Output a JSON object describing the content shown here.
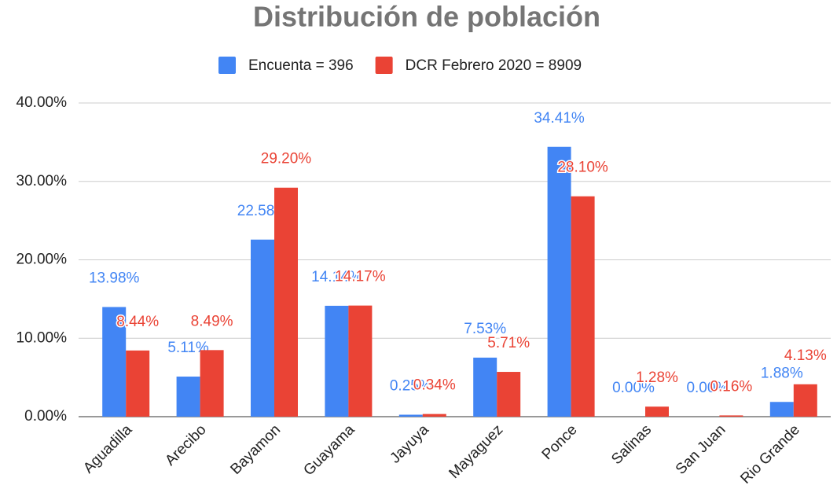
{
  "chart_data": {
    "type": "bar",
    "title": "Distribución de población",
    "categories": [
      "Aguadilla",
      "Arecibo",
      "Bayamon",
      "Guayama",
      "Jayuya",
      "Mayaguez",
      "Ponce",
      "Salinas",
      "San Juan",
      "Rio Grande"
    ],
    "series": [
      {
        "name": "Encuenta = 396",
        "color": "#4285f4",
        "values": [
          13.98,
          5.11,
          22.58,
          14.14,
          0.25,
          7.53,
          34.41,
          0,
          0,
          1.88
        ],
        "value_labels": [
          "13.98%",
          "5.11%",
          "22.58%",
          "14.14%",
          "0.25%",
          "7.53%",
          "34.41%",
          "0.00%",
          "0.00%",
          "1.88%"
        ]
      },
      {
        "name": "DCR Febrero 2020 = 8909",
        "color": "#ea4335",
        "values": [
          8.44,
          8.49,
          29.2,
          14.17,
          0.34,
          5.71,
          28.1,
          1.28,
          0.16,
          4.13
        ],
        "value_labels": [
          "8.44%",
          "8.49%",
          "29.20%",
          "14.17%",
          "0.34%",
          "5.71%",
          "28.10%",
          "1.28%",
          "0.16%",
          "4.13%"
        ]
      }
    ],
    "ylim": [
      0,
      40
    ],
    "yticks": [
      {
        "value": 0,
        "label": "0.00%"
      },
      {
        "value": 10,
        "label": "10.00%"
      },
      {
        "value": 20,
        "label": "20.00%"
      },
      {
        "value": 30,
        "label": "30.00%"
      },
      {
        "value": 40,
        "label": "40.00%"
      }
    ],
    "grid": true,
    "legend": "top"
  }
}
